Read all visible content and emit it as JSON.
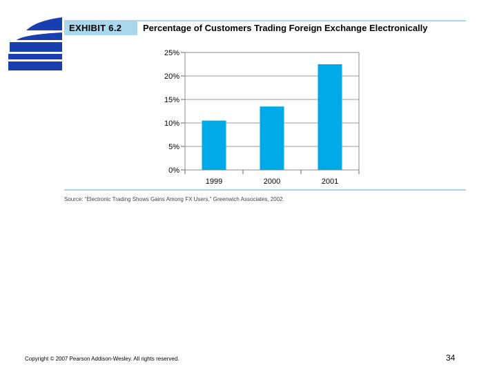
{
  "header": {
    "exhibit_label": "EXHIBIT 6.2",
    "title": "Percentage of Customers Trading Foreign Exchange Electronically"
  },
  "chart_data": {
    "type": "bar",
    "categories": [
      "1999",
      "2000",
      "2001"
    ],
    "values": [
      10.5,
      13.5,
      22.5
    ],
    "y_ticks": [
      "0%",
      "5%",
      "10%",
      "15%",
      "20%",
      "25%"
    ],
    "ylim": [
      0,
      25
    ],
    "grid": true,
    "bar_color": "#00a9e8"
  },
  "source_note": "Source: “Electronic Trading Shows Gains Among FX Users,” Greenwich Associates, 2002.",
  "footer": {
    "copyright": "Copyright © 2007 Pearson Addison-Wesley. All rights reserved.",
    "page_number": "34"
  },
  "colors": {
    "rule": "#a9d8ec",
    "logo": "#1a3fb0"
  }
}
